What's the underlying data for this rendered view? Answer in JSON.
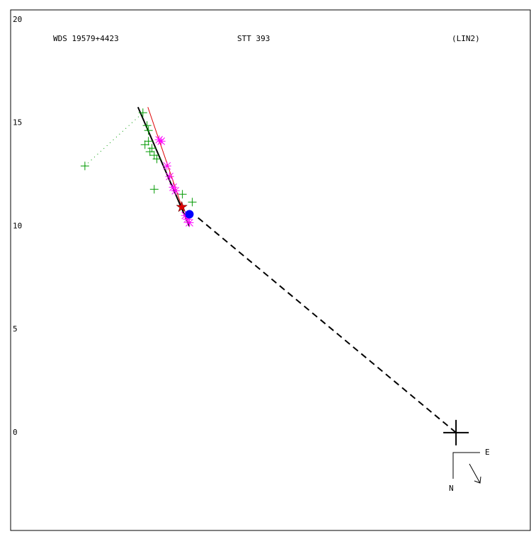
{
  "chart_data": {
    "type": "scatter",
    "titles": [
      "WDS 19579+4423",
      "STT 393",
      "(LIN2)"
    ],
    "xlim": [
      -21.65,
      3.61
    ],
    "ylim": [
      -4.74,
      20.48
    ],
    "yticks": [
      0,
      5,
      10,
      15,
      20
    ],
    "series": [
      {
        "marker": "plus",
        "color": "#009900",
        "x": [
          -18.04,
          -15.22,
          -15.02,
          -14.95,
          -15.12,
          -14.95,
          -14.88,
          -14.78,
          -14.67,
          -14.54,
          -14.67,
          -13.3,
          -12.82
        ],
        "values": [
          12.92,
          15.5,
          14.88,
          14.64,
          13.95,
          14.12,
          13.61,
          13.78,
          13.44,
          13.26,
          11.79,
          11.55,
          11.17
        ]
      },
      {
        "marker": "asterisk",
        "color": "#ff00ff",
        "x": [
          -14.43,
          -14.33,
          -14.05,
          -13.92,
          -13.75,
          -13.64,
          -13.16,
          -13.06,
          -12.96
        ],
        "values": [
          14.19,
          14.12,
          12.92,
          12.41,
          11.89,
          11.72,
          10.52,
          10.34,
          10.17
        ]
      },
      {
        "marker": "circle",
        "color": "#0000ff",
        "x": [
          -12.96
        ],
        "values": [
          10.58
        ]
      },
      {
        "marker": "star",
        "color": "#dd0000",
        "x": [
          -13.33
        ],
        "values": [
          10.93
        ]
      }
    ],
    "lines": [
      {
        "color": "#000000",
        "dash": "none",
        "width": 2,
        "x": [
          -15.46,
          -12.96
        ],
        "values": [
          15.77,
          10.0
        ]
      },
      {
        "color": "#dd0000",
        "dash": "none",
        "width": 1,
        "x": [
          -14.98,
          -13.3
        ],
        "values": [
          15.77,
          10.86
        ]
      },
      {
        "color": "#000000",
        "dash": "9 6",
        "width": 2,
        "x": [
          -12.54,
          0
        ],
        "values": [
          10.41,
          0
        ]
      },
      {
        "color": "#009900",
        "dash": "1 5",
        "width": 1,
        "x": [
          -18.04,
          -15.22
        ],
        "values": [
          12.92,
          15.5
        ]
      }
    ],
    "primary": {
      "x": 0,
      "y": 0
    },
    "compass": {
      "east": "E",
      "north": "N"
    }
  }
}
